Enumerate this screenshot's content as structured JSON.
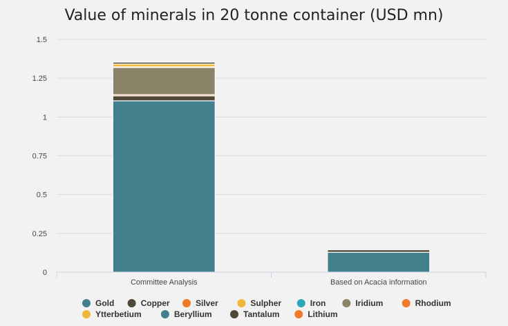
{
  "chart_data": {
    "type": "bar",
    "stacked": true,
    "title": "Value of minerals in 20 tonne container (USD mn)",
    "xlabel": "",
    "ylabel": "",
    "ylim": [
      0,
      1.5
    ],
    "yticks": [
      0,
      0.25,
      0.5,
      0.75,
      1,
      1.25,
      1.5
    ],
    "ytick_labels": [
      "0",
      "0.25",
      "0.5",
      "0.75",
      "1",
      "1.25",
      "1.5"
    ],
    "grid": true,
    "legend_position": "bottom",
    "categories": [
      "Committee Analysis",
      "Based on Acacia information"
    ],
    "series": [
      {
        "name": "Gold",
        "color": "#42808d",
        "values": [
          1.104,
          0.128
        ]
      },
      {
        "name": "Copper",
        "color": "#4f4836",
        "values": [
          0.032,
          0.016
        ]
      },
      {
        "name": "Silver",
        "color": "#ef7a2a",
        "values": [
          0.008,
          0.0
        ]
      },
      {
        "name": "Sulpher",
        "color": "#f2b63a",
        "values": [
          0.0,
          0.0
        ]
      },
      {
        "name": "Iron",
        "color": "#2ba8b8",
        "values": [
          0.0,
          0.0
        ]
      },
      {
        "name": "Iridium",
        "color": "#8a8367",
        "values": [
          0.175,
          0.0
        ]
      },
      {
        "name": "Rhodium",
        "color": "#ef7a2a",
        "values": [
          0.004,
          0.0
        ]
      },
      {
        "name": "Ytterbetium",
        "color": "#f2b63a",
        "values": [
          0.018,
          0.0
        ]
      },
      {
        "name": "Beryllium",
        "color": "#42808d",
        "values": [
          0.0,
          0.0
        ]
      },
      {
        "name": "Tantalum",
        "color": "#4f4836",
        "values": [
          0.012,
          0.0
        ]
      },
      {
        "name": "Lithium",
        "color": "#ef7a2a",
        "values": [
          0.0,
          0.0
        ]
      }
    ]
  }
}
